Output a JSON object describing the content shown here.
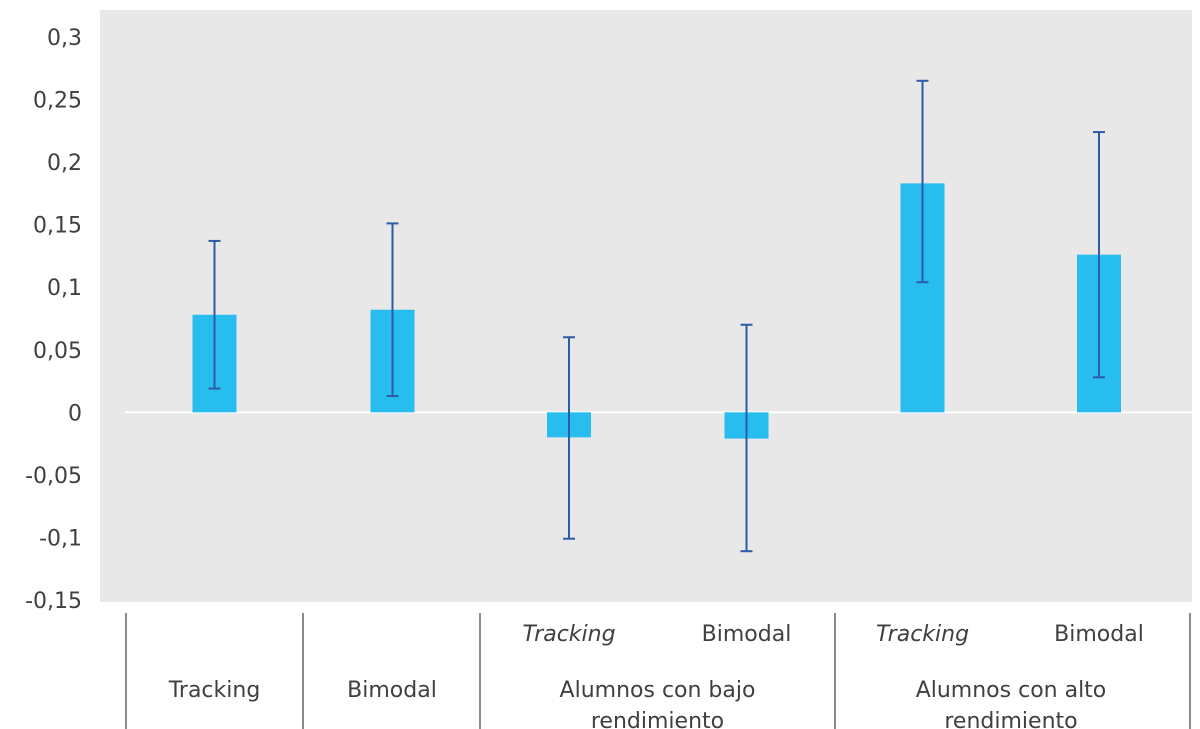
{
  "chart_data": {
    "type": "bar",
    "ylim": [
      -0.15,
      0.3
    ],
    "yticks": [
      "0,3",
      "0,25",
      "0,2",
      "0,15",
      "0,1",
      "0,05",
      "0",
      "-0,05",
      "-0,1",
      "-0,15"
    ],
    "ytick_values": [
      0.3,
      0.25,
      0.2,
      0.15,
      0.1,
      0.05,
      0,
      -0.05,
      -0.1,
      -0.15
    ],
    "grid": false,
    "colors": {
      "plot_bg": "#e8e8e8",
      "bar": "#27bdef",
      "error_bar": "#2e5aa6",
      "zero_line": "#ffffff",
      "axis_lines": "#404040"
    },
    "bars": [
      {
        "label": "Tracking",
        "label_italic": false,
        "value": 0.078,
        "err_low": 0.019,
        "err_high": 0.137
      },
      {
        "label": "Bimodal",
        "label_italic": false,
        "value": 0.082,
        "err_low": 0.013,
        "err_high": 0.151
      },
      {
        "label": "Tracking",
        "label_italic": true,
        "value": -0.02,
        "err_low": -0.101,
        "err_high": 0.06
      },
      {
        "label": "Bimodal",
        "label_italic": false,
        "value": -0.021,
        "err_low": -0.111,
        "err_high": 0.07
      },
      {
        "label": "Tracking",
        "label_italic": true,
        "value": 0.183,
        "err_low": 0.104,
        "err_high": 0.265
      },
      {
        "label": "Bimodal",
        "label_italic": false,
        "value": 0.126,
        "err_low": 0.028,
        "err_high": 0.224
      }
    ],
    "groups": [
      {
        "lines": [
          "Tracking"
        ],
        "bars": [
          0
        ]
      },
      {
        "lines": [
          "Bimodal"
        ],
        "bars": [
          1
        ]
      },
      {
        "lines": [
          "Alumnos con bajo",
          "rendimiento"
        ],
        "bars": [
          2,
          3
        ]
      },
      {
        "lines": [
          "Alumnos con alto",
          "rendimiento"
        ],
        "bars": [
          4,
          5
        ]
      }
    ]
  }
}
